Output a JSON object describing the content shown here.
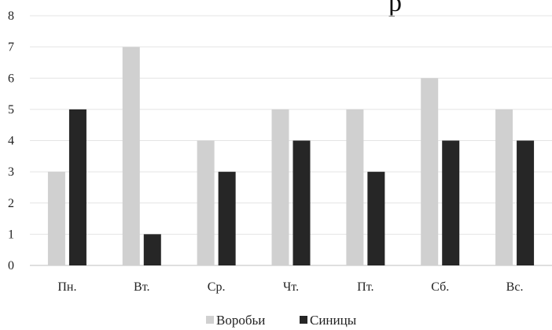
{
  "chart_data": {
    "type": "bar",
    "title_fragment": "р",
    "categories": [
      "Пн.",
      "Вт.",
      "Ср.",
      "Чт.",
      "Пт.",
      "Сб.",
      "Вс."
    ],
    "series": [
      {
        "name": "Воробьи",
        "color": "#d0d0d0",
        "values": [
          3,
          7,
          4,
          5,
          5,
          6,
          5
        ]
      },
      {
        "name": "Синицы",
        "color": "#262626",
        "values": [
          5,
          1,
          3,
          4,
          3,
          4,
          4
        ]
      }
    ],
    "yticks": [
      "0",
      "1",
      "2",
      "3",
      "4",
      "5",
      "6",
      "7",
      "8"
    ],
    "ylim": [
      0,
      8
    ],
    "grid": true,
    "legend": "bottom-center"
  }
}
